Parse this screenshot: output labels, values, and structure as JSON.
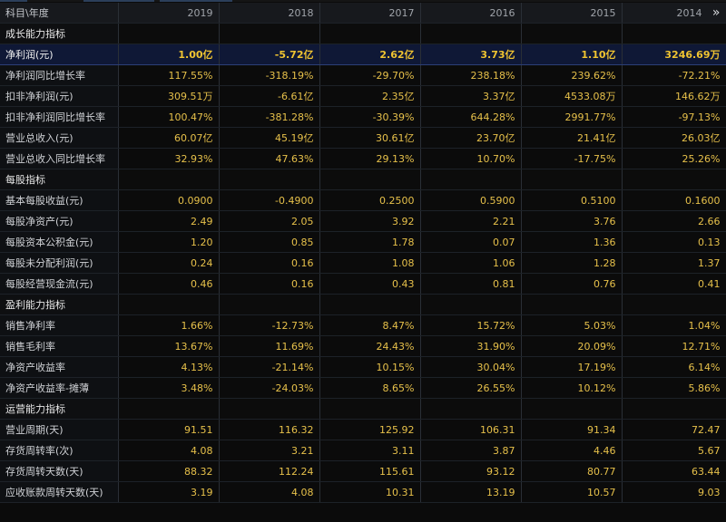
{
  "header": {
    "corner": "科目\\年度",
    "years": [
      "2019",
      "2018",
      "2017",
      "2016",
      "2015",
      "2014"
    ]
  },
  "rows": [
    {
      "type": "section",
      "label": "成长能力指标"
    },
    {
      "type": "highlight",
      "label": "净利润(元)",
      "values": [
        "1.00亿",
        "-5.72亿",
        "2.62亿",
        "3.73亿",
        "1.10亿",
        "3246.69万"
      ]
    },
    {
      "type": "data",
      "label": "净利润同比增长率",
      "values": [
        "117.55%",
        "-318.19%",
        "-29.70%",
        "238.18%",
        "239.62%",
        "-72.21%"
      ]
    },
    {
      "type": "data",
      "label": "扣非净利润(元)",
      "values": [
        "309.51万",
        "-6.61亿",
        "2.35亿",
        "3.37亿",
        "4533.08万",
        "146.62万"
      ]
    },
    {
      "type": "data",
      "label": "扣非净利润同比增长率",
      "values": [
        "100.47%",
        "-381.28%",
        "-30.39%",
        "644.28%",
        "2991.77%",
        "-97.13%"
      ]
    },
    {
      "type": "data",
      "label": "营业总收入(元)",
      "values": [
        "60.07亿",
        "45.19亿",
        "30.61亿",
        "23.70亿",
        "21.41亿",
        "26.03亿"
      ]
    },
    {
      "type": "data",
      "label": "营业总收入同比增长率",
      "values": [
        "32.93%",
        "47.63%",
        "29.13%",
        "10.70%",
        "-17.75%",
        "25.26%"
      ]
    },
    {
      "type": "section",
      "label": "每股指标"
    },
    {
      "type": "data",
      "label": "基本每股收益(元)",
      "values": [
        "0.0900",
        "-0.4900",
        "0.2500",
        "0.5900",
        "0.5100",
        "0.1600"
      ]
    },
    {
      "type": "data",
      "label": "每股净资产(元)",
      "values": [
        "2.49",
        "2.05",
        "3.92",
        "2.21",
        "3.76",
        "2.66"
      ]
    },
    {
      "type": "data",
      "label": "每股资本公积金(元)",
      "values": [
        "1.20",
        "0.85",
        "1.78",
        "0.07",
        "1.36",
        "0.13"
      ]
    },
    {
      "type": "data",
      "label": "每股未分配利润(元)",
      "values": [
        "0.24",
        "0.16",
        "1.08",
        "1.06",
        "1.28",
        "1.37"
      ]
    },
    {
      "type": "data",
      "label": "每股经营现金流(元)",
      "values": [
        "0.46",
        "0.16",
        "0.43",
        "0.81",
        "0.76",
        "0.41"
      ]
    },
    {
      "type": "section",
      "label": "盈利能力指标"
    },
    {
      "type": "data",
      "label": "销售净利率",
      "values": [
        "1.66%",
        "-12.73%",
        "8.47%",
        "15.72%",
        "5.03%",
        "1.04%"
      ]
    },
    {
      "type": "data",
      "label": "销售毛利率",
      "values": [
        "13.67%",
        "11.69%",
        "24.43%",
        "31.90%",
        "20.09%",
        "12.71%"
      ]
    },
    {
      "type": "data",
      "label": "净资产收益率",
      "values": [
        "4.13%",
        "-21.14%",
        "10.15%",
        "30.04%",
        "17.19%",
        "6.14%"
      ]
    },
    {
      "type": "data",
      "label": "净资产收益率-摊薄",
      "values": [
        "3.48%",
        "-24.03%",
        "8.65%",
        "26.55%",
        "10.12%",
        "5.86%"
      ]
    },
    {
      "type": "section",
      "label": "运营能力指标"
    },
    {
      "type": "data",
      "label": "营业周期(天)",
      "values": [
        "91.51",
        "116.32",
        "125.92",
        "106.31",
        "91.34",
        "72.47"
      ]
    },
    {
      "type": "data",
      "label": "存货周转率(次)",
      "values": [
        "4.08",
        "3.21",
        "3.11",
        "3.87",
        "4.46",
        "5.67"
      ]
    },
    {
      "type": "data",
      "label": "存货周转天数(天)",
      "values": [
        "88.32",
        "112.24",
        "115.61",
        "93.12",
        "80.77",
        "63.44"
      ]
    },
    {
      "type": "data",
      "label": "应收账款周转天数(天)",
      "values": [
        "3.19",
        "4.08",
        "10.31",
        "13.19",
        "10.57",
        "9.03"
      ]
    }
  ],
  "icons": {
    "expand": "double-chevron-right-icon"
  },
  "colors": {
    "value_text": "#e6c04a",
    "highlight_row_bg": "#0f1836",
    "background": "#0b0b0b"
  }
}
